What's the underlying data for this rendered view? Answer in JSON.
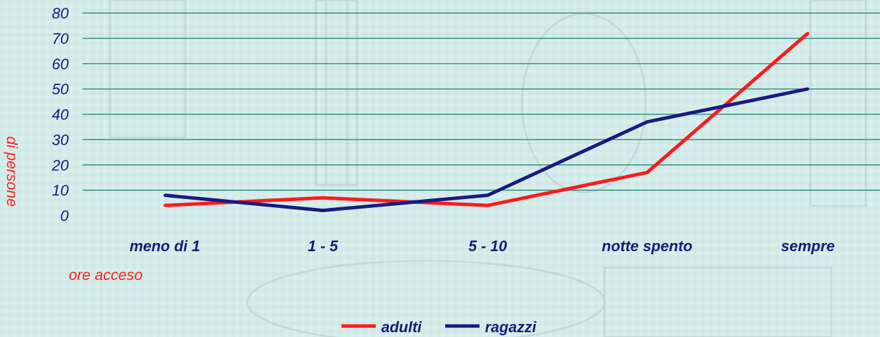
{
  "chart_data": {
    "type": "line",
    "categories": [
      "meno di 1",
      "1 - 5",
      "5 - 10",
      "notte spento",
      "sempre"
    ],
    "series": [
      {
        "name": "adulti",
        "color": "#ff1a1a",
        "values": [
          4,
          7,
          4,
          17,
          72
        ]
      },
      {
        "name": "ragazzi",
        "color": "#1a1a80",
        "values": [
          8,
          2,
          8,
          37,
          50
        ]
      }
    ],
    "yticks": [
      "0",
      "10",
      "20",
      "30",
      "40",
      "50",
      "60",
      "70",
      "80"
    ],
    "ylim": [
      0,
      80
    ],
    "xlabel": "ore acceso",
    "ylabel": "di persone",
    "grid": true,
    "legend": "bottom"
  }
}
